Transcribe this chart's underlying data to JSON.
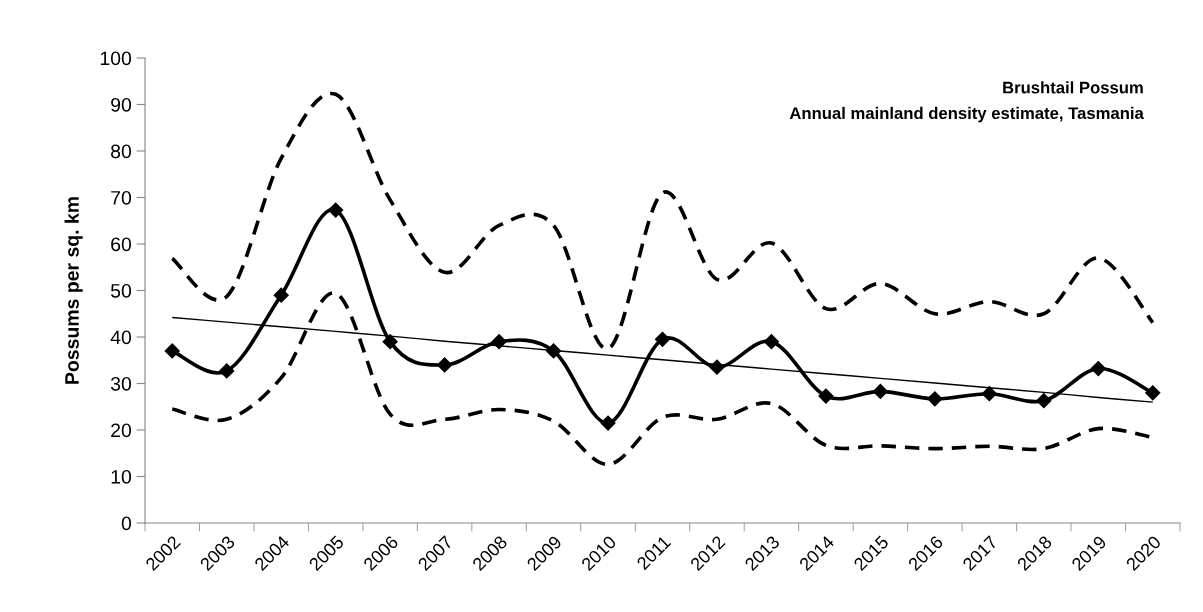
{
  "chart_data": {
    "type": "line",
    "title": "Brushtail Possum",
    "subtitle": "Annual mainland density estimate, Tasmania",
    "ylabel": "Possums per sq. km",
    "categories": [
      "2002",
      "2003",
      "2004",
      "2005",
      "2006",
      "2007",
      "2008",
      "2009",
      "2010",
      "2011",
      "2012",
      "2013",
      "2014",
      "2015",
      "2016",
      "2017",
      "2018",
      "2019",
      "2020"
    ],
    "series": [
      {
        "color": "#000000",
        "marker": "diamond",
        "line_style": "solid",
        "values": [
          37,
          32.7,
          49,
          67.3,
          39,
          34,
          39,
          37,
          21.5,
          39.5,
          33.5,
          39,
          27.3,
          28.3,
          26.7,
          27.8,
          26.3,
          33.2,
          28
        ]
      },
      {
        "color": "#000000",
        "marker": "none",
        "line_style": "dashed",
        "values": [
          56.9,
          48.7,
          78.4,
          92.2,
          69.5,
          53.9,
          64,
          64,
          37.5,
          71,
          52.4,
          60.2,
          46.1,
          51.5,
          45,
          47.6,
          45,
          57,
          43.1
        ]
      },
      {
        "color": "#000000",
        "marker": "none",
        "line_style": "dashed",
        "values": [
          24.5,
          22.3,
          31.2,
          49.4,
          23.4,
          22.3,
          24.4,
          21.9,
          12.6,
          22.7,
          22.3,
          25.7,
          16.7,
          16.6,
          16,
          16.5,
          16,
          20.3,
          18.4
        ]
      },
      {
        "color": "#000000",
        "marker": "none",
        "line_style": "solid",
        "values": [
          44.2,
          43.2,
          42.2,
          41.2,
          40.2,
          39.1,
          38.1,
          37.1,
          36.1,
          35.1,
          34.1,
          33.1,
          32.1,
          31.1,
          30.1,
          29.1,
          28.1,
          27.0,
          26.0
        ]
      }
    ],
    "ylim": [
      0,
      100
    ],
    "yticks": [
      0,
      10,
      20,
      30,
      40,
      50,
      60,
      70,
      80,
      90,
      100
    ],
    "grid": false,
    "legend": false
  }
}
